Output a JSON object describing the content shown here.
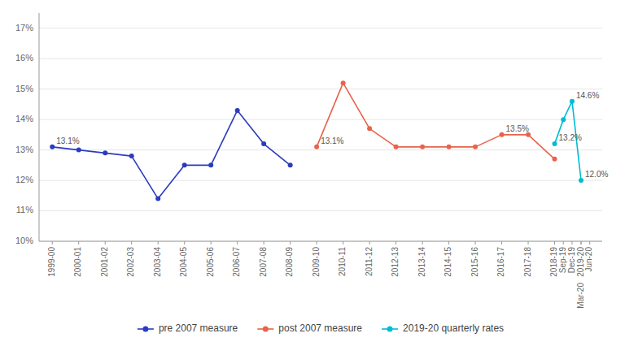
{
  "chart_data": {
    "type": "line",
    "marker": "circle",
    "grid": true,
    "legend": "bottom",
    "xlim": [
      -0.5,
      20.8
    ],
    "xticks": [
      {
        "value": 0,
        "label": "1999-00"
      },
      {
        "value": 1,
        "label": "2000-01"
      },
      {
        "value": 2,
        "label": "2001-02"
      },
      {
        "value": 3,
        "label": "2002-03"
      },
      {
        "value": 4,
        "label": "2003-04"
      },
      {
        "value": 5,
        "label": "2004-05"
      },
      {
        "value": 6,
        "label": "2005-06"
      },
      {
        "value": 7,
        "label": "2006-07"
      },
      {
        "value": 8,
        "label": "2007-08"
      },
      {
        "value": 9,
        "label": "2008-09"
      },
      {
        "value": 10,
        "label": "2009-10"
      },
      {
        "value": 11,
        "label": "2010-11"
      },
      {
        "value": 12,
        "label": "2011-12"
      },
      {
        "value": 13,
        "label": "2012-13"
      },
      {
        "value": 14,
        "label": "2013-14"
      },
      {
        "value": 15,
        "label": "2014-15"
      },
      {
        "value": 16,
        "label": "2015-16"
      },
      {
        "value": 17,
        "label": "2016-17"
      },
      {
        "value": 18,
        "label": "2017-18"
      },
      {
        "value": 19,
        "label": "2018-19"
      },
      {
        "value": 20,
        "label": "2019-20"
      },
      {
        "value": 19.33,
        "label": "Sep-19"
      },
      {
        "value": 19.66,
        "label": "Dec-19"
      },
      {
        "value": 20.0,
        "label": "Mar-20"
      },
      {
        "value": 20.33,
        "label": "Jun-20"
      }
    ],
    "ylim": [
      10.0,
      17.5
    ],
    "yticks": [
      {
        "value": 10,
        "label": "10%"
      },
      {
        "value": 11,
        "label": "11%"
      },
      {
        "value": 12,
        "label": "12%"
      },
      {
        "value": 13,
        "label": "13%"
      },
      {
        "value": 14,
        "label": "14%"
      },
      {
        "value": 15,
        "label": "15%"
      },
      {
        "value": 16,
        "label": "16%"
      },
      {
        "value": 17,
        "label": "17%"
      }
    ],
    "series": [
      {
        "name": "pre 2007 measure",
        "color": "#2b3bbf",
        "x": [
          0,
          1,
          2,
          3,
          4,
          5,
          6,
          7,
          8,
          9,
          10
        ],
        "values": [
          13.1,
          13.0,
          12.9,
          12.8,
          11.4,
          12.5,
          12.5,
          14.3,
          13.2,
          12.5,
          null
        ]
      },
      {
        "name": "post 2007 measure",
        "color": "#e8634a",
        "x": [
          10,
          11,
          12,
          13,
          14,
          15,
          16,
          17,
          18,
          19
        ],
        "values": [
          13.1,
          15.2,
          13.7,
          13.1,
          13.1,
          13.1,
          13.1,
          13.5,
          13.5,
          12.7
        ]
      },
      {
        "name": "2019-20 quarterly rates",
        "color": "#00bcd4",
        "x": [
          19,
          19.33,
          19.66,
          20.0
        ],
        "values": [
          13.2,
          14.0,
          14.6,
          12.0
        ]
      }
    ],
    "annotations": [
      {
        "x": 0,
        "y": 13.1,
        "text": "13.1%"
      },
      {
        "x": 10,
        "y": 13.1,
        "text": "13.1%"
      },
      {
        "x": 17,
        "y": 13.5,
        "text": "13.5%"
      },
      {
        "x": 19,
        "y": 13.2,
        "text": "13.2%"
      },
      {
        "x": 19.66,
        "y": 14.6,
        "text": "14.6%"
      },
      {
        "x": 20.0,
        "y": 12.0,
        "text": "12.0%"
      }
    ]
  }
}
